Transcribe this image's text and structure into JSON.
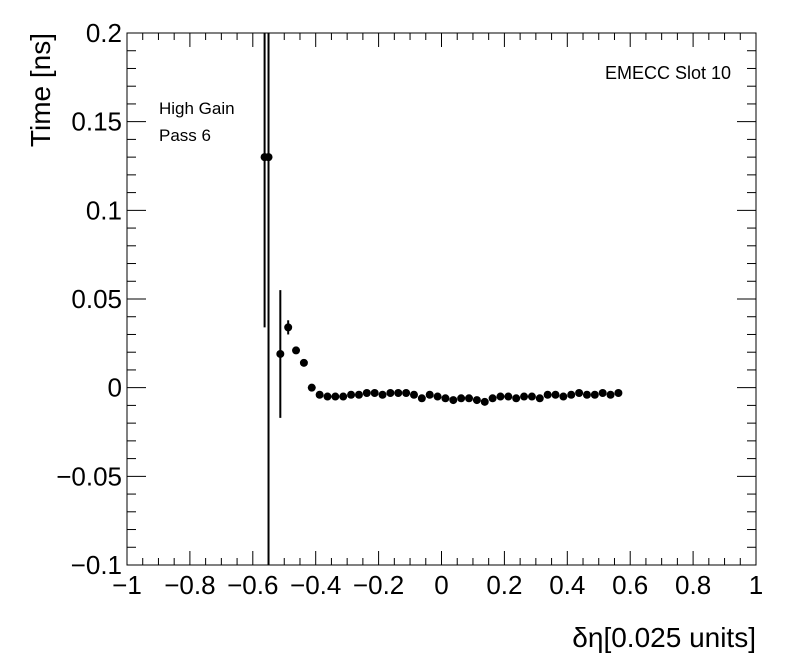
{
  "chart_data": {
    "type": "scatter",
    "xlabel": "δη[0.025 units]",
    "ylabel": "Time [ns]",
    "xlim": [
      -1,
      1
    ],
    "ylim": [
      -0.1,
      0.2
    ],
    "x_ticks": [
      -1,
      -0.8,
      -0.6,
      -0.4,
      -0.2,
      0,
      0.2,
      0.4,
      0.6,
      0.8,
      1
    ],
    "x_tick_labels": [
      "−1",
      "−0.8",
      "−0.6",
      "−0.4",
      "−0.2",
      "0",
      "0.2",
      "0.4",
      "0.6",
      "0.8",
      "1"
    ],
    "y_ticks": [
      -0.1,
      -0.05,
      0,
      0.05,
      0.1,
      0.15,
      0.2
    ],
    "y_tick_labels": [
      "−0.1",
      "−0.05",
      "0",
      "0.05",
      "0.1",
      "0.15",
      "0.2"
    ],
    "annotations": {
      "top_left": [
        "High Gain",
        "Pass 6"
      ],
      "top_right": "EMECC Slot 10"
    },
    "grid": false,
    "marker_color": "#000000",
    "series": [
      {
        "points": [
          {
            "x": -0.5625,
            "y": 0.13,
            "yerr_lo": 0.096,
            "yerr_hi": 0.08
          },
          {
            "x": -0.55,
            "y": 0.13,
            "yerr_lo": 0.23,
            "yerr_hi": 0.08
          },
          {
            "x": -0.5125,
            "y": 0.019,
            "yerr_lo": 0.036,
            "yerr_hi": 0.036
          },
          {
            "x": -0.4875,
            "y": 0.034,
            "yerr_lo": 0.004,
            "yerr_hi": 0.004
          },
          {
            "x": -0.4625,
            "y": 0.021
          },
          {
            "x": -0.4375,
            "y": 0.014
          },
          {
            "x": -0.4125,
            "y": 0.0
          },
          {
            "x": -0.3875,
            "y": -0.004
          },
          {
            "x": -0.3625,
            "y": -0.005
          },
          {
            "x": -0.3375,
            "y": -0.005
          },
          {
            "x": -0.3125,
            "y": -0.005
          },
          {
            "x": -0.2875,
            "y": -0.004
          },
          {
            "x": -0.2625,
            "y": -0.004
          },
          {
            "x": -0.2375,
            "y": -0.003
          },
          {
            "x": -0.2125,
            "y": -0.003
          },
          {
            "x": -0.1875,
            "y": -0.004
          },
          {
            "x": -0.1625,
            "y": -0.003
          },
          {
            "x": -0.1375,
            "y": -0.003
          },
          {
            "x": -0.1125,
            "y": -0.003
          },
          {
            "x": -0.0875,
            "y": -0.004
          },
          {
            "x": -0.0625,
            "y": -0.006
          },
          {
            "x": -0.0375,
            "y": -0.004
          },
          {
            "x": -0.0125,
            "y": -0.005
          },
          {
            "x": 0.0125,
            "y": -0.006
          },
          {
            "x": 0.0375,
            "y": -0.007
          },
          {
            "x": 0.0625,
            "y": -0.006
          },
          {
            "x": 0.0875,
            "y": -0.006
          },
          {
            "x": 0.1125,
            "y": -0.007
          },
          {
            "x": 0.1375,
            "y": -0.008
          },
          {
            "x": 0.1625,
            "y": -0.006
          },
          {
            "x": 0.1875,
            "y": -0.005
          },
          {
            "x": 0.2125,
            "y": -0.005
          },
          {
            "x": 0.2375,
            "y": -0.006
          },
          {
            "x": 0.2625,
            "y": -0.005
          },
          {
            "x": 0.2875,
            "y": -0.005
          },
          {
            "x": 0.3125,
            "y": -0.006
          },
          {
            "x": 0.3375,
            "y": -0.004
          },
          {
            "x": 0.3625,
            "y": -0.004
          },
          {
            "x": 0.3875,
            "y": -0.005
          },
          {
            "x": 0.4125,
            "y": -0.004
          },
          {
            "x": 0.4375,
            "y": -0.003
          },
          {
            "x": 0.4625,
            "y": -0.004
          },
          {
            "x": 0.4875,
            "y": -0.004
          },
          {
            "x": 0.5125,
            "y": -0.003
          },
          {
            "x": 0.5375,
            "y": -0.004
          },
          {
            "x": 0.5625,
            "y": -0.003
          }
        ]
      }
    ]
  }
}
